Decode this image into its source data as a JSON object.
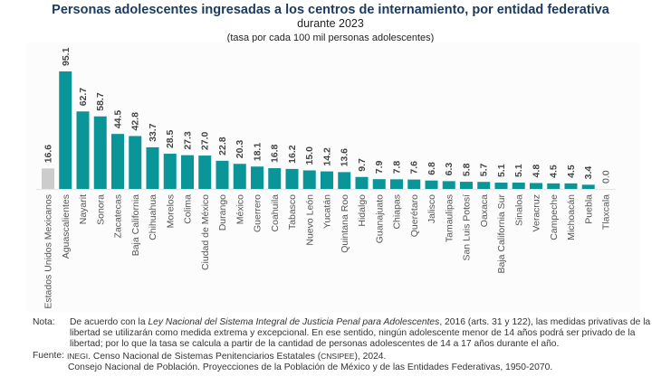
{
  "chart_data": {
    "type": "bar",
    "title": "Personas adolescentes ingresadas a los centros de internamiento, por entidad federativa",
    "subtitle": "durante 2023",
    "units": "(tasa por cada 100 mil personas adolescentes)",
    "xlabel": "",
    "ylabel": "",
    "ylim": [
      0,
      100
    ],
    "grid": false,
    "legend": "none",
    "categories": [
      "Estados Unidos Mexicanos",
      "Aguascalientes",
      "Nayarit",
      "Sonora",
      "Zacatecas",
      "Baja California",
      "Chihuahua",
      "Morelos",
      "Colima",
      "Ciudad de México",
      "Durango",
      "México",
      "Guerrero",
      "Coahuila",
      "Tabasco",
      "Nuevo León",
      "Yucatán",
      "Quintana Roo",
      "Hidalgo",
      "Guanajuato",
      "Chiapas",
      "Querétaro",
      "Jalisco",
      "Tamaulipas",
      "San Luis Potosí",
      "Oaxaca",
      "Baja California Sur",
      "Sinaloa",
      "Veracruz",
      "Campeche",
      "Michoacán",
      "Puebla",
      "Tlaxcala"
    ],
    "values": [
      16.6,
      95.1,
      62.7,
      58.7,
      44.5,
      42.8,
      33.7,
      28.5,
      27.3,
      27.0,
      22.8,
      20.3,
      18.1,
      16.8,
      16.2,
      15.0,
      14.2,
      13.6,
      9.7,
      7.9,
      7.8,
      7.6,
      6.8,
      6.3,
      5.8,
      5.7,
      5.1,
      5.1,
      4.8,
      4.5,
      4.5,
      3.4,
      0.0
    ],
    "value_labels": [
      "16.6",
      "95.1",
      "62.7",
      "58.7",
      "44.5",
      "42.8",
      "33.7",
      "28.5",
      "27.3",
      "27.0",
      "22.8",
      "20.3",
      "18.1",
      "16.8",
      "16.2",
      "15.0",
      "14.2",
      "13.6",
      "9.7",
      "7.9",
      "7.8",
      "7.6",
      "6.8",
      "6.3",
      "5.8",
      "5.7",
      "5.1",
      "5.1",
      "4.8",
      "4.5",
      "4.5",
      "3.4",
      "0.0"
    ],
    "colors": {
      "national": "#cccccc",
      "states": "#0a9598",
      "baseline": "#e6e6e6",
      "labels": "#444444"
    }
  },
  "notes": {
    "nota_label": "Nota:",
    "nota_pre": "De acuerdo con la ",
    "nota_law": "Ley Nacional del Sistema Integral de Justicia Penal para Adolescentes",
    "nota_post": ", 2016 (arts. 31 y 122), las medidas privativas de la libertad se utilizarán como medida extrema y excepcional. En ese sentido, ningún adolescente menor de 14 años podrá ser privado de la libertad; por lo que la tasa se calcula a partir de la cantidad de personas adolescentes de 14 a 17 años durante el año.",
    "fuente_label": "Fuente:",
    "fuente_org": "INEGI",
    "fuente_line1_mid": ". Censo Nacional de Sistemas Penitenciarios Estatales (",
    "fuente_acronym": "CNSIPEE",
    "fuente_line1_end": "), 2024.",
    "fuente_line2": "Consejo Nacional de Población. Proyecciones de la Población de México y de las Entidades Federativas, 1950-2070."
  }
}
